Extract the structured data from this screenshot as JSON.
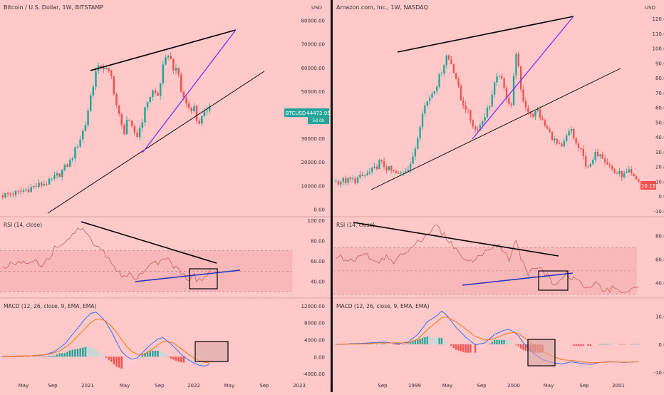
{
  "colors": {
    "background": "#ffc9c9",
    "bull": "#26a69a",
    "bear": "#ef5350",
    "rsi_line": "#c2605d",
    "rsi_band": "#f3a9ad",
    "macd_line": "#2962ff",
    "signal_line": "#ff6d00",
    "hist_light_bull": "#b2dfdb",
    "hist_light_bear": "#ffcdd2",
    "wedge_line": "#000000",
    "purple_line": "#7b2ff7",
    "blue_line": "#2030c0",
    "price_tag_btc": "#26a69a",
    "price_tag_amzn": "#ef5350"
  },
  "chart_data": [
    {
      "type": "candlestick",
      "title": "Bitcoin / U.S. Dollar, 1W, BITSTAMP",
      "currency": "USD",
      "price_ticks": [
        "80000.00",
        "70000.00",
        "60000.00",
        "50000.00",
        "40000.00",
        "30000.00",
        "20000.00",
        "10000.00",
        "0.00"
      ],
      "price_ylim": [
        -2000,
        82000
      ],
      "time_ticks": [
        "May",
        "Sep",
        "2021",
        "May",
        "Sep",
        "2022",
        "May",
        "Sep",
        "2023"
      ],
      "price_tag": {
        "symbol": "BTCUSD",
        "value": "44472.95",
        "countdown": "5d 0h"
      },
      "close_path": [
        [
          0,
          6000
        ],
        [
          6,
          7000
        ],
        [
          12,
          9500
        ],
        [
          18,
          11500
        ],
        [
          22,
          15000
        ],
        [
          26,
          20000
        ],
        [
          30,
          30000
        ],
        [
          32,
          36000
        ],
        [
          34,
          48000
        ],
        [
          36,
          58000
        ],
        [
          38,
          61000
        ],
        [
          40,
          59000
        ],
        [
          42,
          56000
        ],
        [
          43,
          50000
        ],
        [
          44,
          44000
        ],
        [
          46,
          35000
        ],
        [
          47,
          33000
        ],
        [
          48,
          38000
        ],
        [
          50,
          34000
        ],
        [
          52,
          31000
        ],
        [
          54,
          38000
        ],
        [
          56,
          46000
        ],
        [
          58,
          50000
        ],
        [
          60,
          48000
        ],
        [
          62,
          60000
        ],
        [
          64,
          66000
        ],
        [
          66,
          60000
        ],
        [
          68,
          57000
        ],
        [
          69,
          50000
        ],
        [
          70,
          47000
        ],
        [
          72,
          43000
        ],
        [
          74,
          43000
        ],
        [
          75,
          38000
        ],
        [
          76,
          37000
        ],
        [
          78,
          40000
        ],
        [
          80,
          45000
        ]
      ],
      "rsi": {
        "title": "RSI (14, close)",
        "ticks": [
          "100.00",
          "80.00",
          "60.00",
          "40.00"
        ],
        "ylim": [
          25,
          102
        ],
        "band": [
          30,
          70
        ],
        "mid": 50,
        "path": [
          [
            0,
            55
          ],
          [
            6,
            58
          ],
          [
            12,
            62
          ],
          [
            16,
            55
          ],
          [
            20,
            72
          ],
          [
            24,
            80
          ],
          [
            28,
            88
          ],
          [
            30,
            92
          ],
          [
            32,
            88
          ],
          [
            34,
            80
          ],
          [
            36,
            75
          ],
          [
            38,
            72
          ],
          [
            40,
            66
          ],
          [
            44,
            52
          ],
          [
            46,
            45
          ],
          [
            48,
            47
          ],
          [
            52,
            42
          ],
          [
            56,
            55
          ],
          [
            60,
            58
          ],
          [
            62,
            62
          ],
          [
            64,
            65
          ],
          [
            66,
            55
          ],
          [
            68,
            50
          ],
          [
            70,
            46
          ],
          [
            72,
            40
          ],
          [
            74,
            45
          ],
          [
            76,
            40
          ],
          [
            78,
            44
          ],
          [
            80,
            50
          ]
        ]
      },
      "macd": {
        "title": "MACD (12, 26, close, 9, EMA, EMA)",
        "ticks": [
          "12000.00",
          "8000.00",
          "4000.00",
          "0.00",
          "-4000.00"
        ],
        "ylim": [
          -5000,
          13500
        ],
        "macd_path": [
          [
            0,
            100
          ],
          [
            10,
            200
          ],
          [
            16,
            400
          ],
          [
            20,
            1200
          ],
          [
            24,
            3000
          ],
          [
            28,
            6000
          ],
          [
            32,
            9000
          ],
          [
            34,
            10200
          ],
          [
            36,
            10500
          ],
          [
            38,
            9500
          ],
          [
            40,
            8000
          ],
          [
            42,
            6000
          ],
          [
            44,
            3500
          ],
          [
            46,
            1200
          ],
          [
            48,
            0
          ],
          [
            50,
            -600
          ],
          [
            52,
            -300
          ],
          [
            54,
            900
          ],
          [
            56,
            2200
          ],
          [
            58,
            3200
          ],
          [
            60,
            4200
          ],
          [
            62,
            4500
          ],
          [
            64,
            3500
          ],
          [
            66,
            2500
          ],
          [
            68,
            1200
          ],
          [
            70,
            0
          ],
          [
            72,
            -800
          ],
          [
            74,
            -1500
          ],
          [
            76,
            -2000
          ],
          [
            78,
            -2200
          ],
          [
            80,
            -1800
          ]
        ],
        "signal_path": [
          [
            0,
            100
          ],
          [
            12,
            250
          ],
          [
            18,
            600
          ],
          [
            22,
            1300
          ],
          [
            26,
            3000
          ],
          [
            30,
            5500
          ],
          [
            34,
            8000
          ],
          [
            36,
            8800
          ],
          [
            38,
            8900
          ],
          [
            40,
            8300
          ],
          [
            42,
            7200
          ],
          [
            44,
            5800
          ],
          [
            46,
            4000
          ],
          [
            48,
            2400
          ],
          [
            50,
            1200
          ],
          [
            52,
            600
          ],
          [
            54,
            500
          ],
          [
            56,
            1000
          ],
          [
            58,
            1800
          ],
          [
            60,
            2800
          ],
          [
            62,
            3500
          ],
          [
            64,
            3600
          ],
          [
            66,
            3200
          ],
          [
            68,
            2400
          ],
          [
            70,
            1400
          ],
          [
            72,
            500
          ],
          [
            74,
            -300
          ],
          [
            76,
            -900
          ],
          [
            78,
            -1300
          ],
          [
            80,
            -1500
          ]
        ]
      }
    },
    {
      "type": "candlestick",
      "title": "Amazon.com, Inc., 1W, NASDAQ",
      "currency": "USD",
      "price_ticks": [
        "120.00",
        "110.00",
        "100.00",
        "90.00",
        "80.00",
        "70.00",
        "60.00",
        "50.00",
        "40.00",
        "30.00",
        "20.00",
        "10.00",
        "0.00",
        "-10.00"
      ],
      "price_ylim": [
        -12,
        122
      ],
      "time_ticks": [
        "Sep",
        "1999",
        "May",
        "Sep",
        "2000",
        "May",
        "Sep",
        "2001"
      ],
      "price_tag": {
        "symbol": "",
        "value": "10.19",
        "countdown": ""
      },
      "close_path": [
        [
          0,
          10
        ],
        [
          8,
          11
        ],
        [
          12,
          14
        ],
        [
          16,
          18
        ],
        [
          18,
          23
        ],
        [
          22,
          18
        ],
        [
          26,
          14
        ],
        [
          30,
          20
        ],
        [
          32,
          25
        ],
        [
          34,
          40
        ],
        [
          36,
          58
        ],
        [
          40,
          70
        ],
        [
          42,
          76
        ],
        [
          44,
          85
        ],
        [
          46,
          95
        ],
        [
          48,
          90
        ],
        [
          50,
          80
        ],
        [
          52,
          65
        ],
        [
          54,
          60
        ],
        [
          56,
          52
        ],
        [
          58,
          45
        ],
        [
          60,
          48
        ],
        [
          62,
          55
        ],
        [
          64,
          62
        ],
        [
          66,
          75
        ],
        [
          68,
          83
        ],
        [
          70,
          72
        ],
        [
          72,
          64
        ],
        [
          73,
          62
        ],
        [
          74,
          80
        ],
        [
          75,
          98
        ],
        [
          76,
          86
        ],
        [
          77,
          70
        ],
        [
          79,
          60
        ],
        [
          82,
          55
        ],
        [
          84,
          58
        ],
        [
          86,
          50
        ],
        [
          88,
          45
        ],
        [
          90,
          40
        ],
        [
          92,
          35
        ],
        [
          94,
          32
        ],
        [
          96,
          40
        ],
        [
          98,
          45
        ],
        [
          100,
          35
        ],
        [
          102,
          30
        ],
        [
          104,
          22
        ],
        [
          106,
          20
        ],
        [
          108,
          28
        ],
        [
          110,
          30
        ],
        [
          112,
          25
        ],
        [
          114,
          20
        ],
        [
          116,
          16
        ],
        [
          118,
          15
        ],
        [
          120,
          14
        ],
        [
          122,
          16
        ],
        [
          124,
          12
        ],
        [
          126,
          10
        ]
      ],
      "rsi": {
        "title": "RSI (14, close)",
        "ticks": [
          "80.00",
          "60.00",
          "40.00"
        ],
        "ylim": [
          28,
          95
        ],
        "band": [
          30,
          70
        ],
        "mid": 50,
        "path": [
          [
            0,
            62
          ],
          [
            8,
            58
          ],
          [
            12,
            65
          ],
          [
            16,
            56
          ],
          [
            20,
            62
          ],
          [
            24,
            58
          ],
          [
            30,
            66
          ],
          [
            34,
            75
          ],
          [
            38,
            82
          ],
          [
            42,
            88
          ],
          [
            44,
            82
          ],
          [
            48,
            74
          ],
          [
            52,
            62
          ],
          [
            56,
            58
          ],
          [
            60,
            62
          ],
          [
            64,
            70
          ],
          [
            68,
            72
          ],
          [
            70,
            68
          ],
          [
            72,
            58
          ],
          [
            74,
            70
          ],
          [
            75,
            78
          ],
          [
            77,
            62
          ],
          [
            80,
            48
          ],
          [
            84,
            52
          ],
          [
            88,
            45
          ],
          [
            92,
            38
          ],
          [
            96,
            48
          ],
          [
            100,
            42
          ],
          [
            104,
            35
          ],
          [
            108,
            38
          ],
          [
            112,
            34
          ],
          [
            116,
            35
          ],
          [
            120,
            33
          ],
          [
            124,
            34
          ],
          [
            126,
            33
          ]
        ]
      },
      "macd": {
        "title": "MACD (12, 26, close, 9, EMA, EMA)",
        "ticks": [
          "10.00",
          "0.00",
          "-10.00"
        ],
        "ylim": [
          -12,
          16
        ],
        "macd_path": [
          [
            0,
            0
          ],
          [
            10,
            0.3
          ],
          [
            16,
            0.6
          ],
          [
            20,
            0.8
          ],
          [
            26,
            0.2
          ],
          [
            30,
            0.8
          ],
          [
            34,
            3.5
          ],
          [
            38,
            8
          ],
          [
            42,
            10.2
          ],
          [
            44,
            11.8
          ],
          [
            46,
            10.5
          ],
          [
            50,
            6
          ],
          [
            54,
            2.5
          ],
          [
            58,
            -0.2
          ],
          [
            62,
            0.5
          ],
          [
            66,
            3.5
          ],
          [
            70,
            5
          ],
          [
            72,
            5.3
          ],
          [
            74,
            4.5
          ],
          [
            76,
            3
          ],
          [
            78,
            0.5
          ],
          [
            82,
            -3
          ],
          [
            86,
            -5.5
          ],
          [
            90,
            -6.5
          ],
          [
            94,
            -7
          ],
          [
            98,
            -6.3
          ],
          [
            102,
            -6.8
          ],
          [
            106,
            -7.2
          ],
          [
            110,
            -6.5
          ],
          [
            114,
            -6.2
          ],
          [
            120,
            -6.5
          ],
          [
            126,
            -6.2
          ]
        ],
        "signal_path": [
          [
            0,
            0
          ],
          [
            12,
            0.2
          ],
          [
            18,
            0.5
          ],
          [
            24,
            0.5
          ],
          [
            30,
            0.5
          ],
          [
            34,
            1.8
          ],
          [
            38,
            5.2
          ],
          [
            42,
            8
          ],
          [
            44,
            9.5
          ],
          [
            46,
            9.8
          ],
          [
            50,
            8
          ],
          [
            54,
            5.5
          ],
          [
            58,
            2.8
          ],
          [
            62,
            1.5
          ],
          [
            66,
            2
          ],
          [
            70,
            3.5
          ],
          [
            72,
            4
          ],
          [
            74,
            4.2
          ],
          [
            76,
            3.8
          ],
          [
            78,
            2.6
          ],
          [
            82,
            0
          ],
          [
            86,
            -2.5
          ],
          [
            90,
            -4.2
          ],
          [
            94,
            -5.5
          ],
          [
            98,
            -5.8
          ],
          [
            102,
            -6.2
          ],
          [
            106,
            -6.6
          ],
          [
            110,
            -6.5
          ],
          [
            114,
            -6.3
          ],
          [
            120,
            -6.4
          ],
          [
            126,
            -6.3
          ]
        ]
      }
    }
  ]
}
